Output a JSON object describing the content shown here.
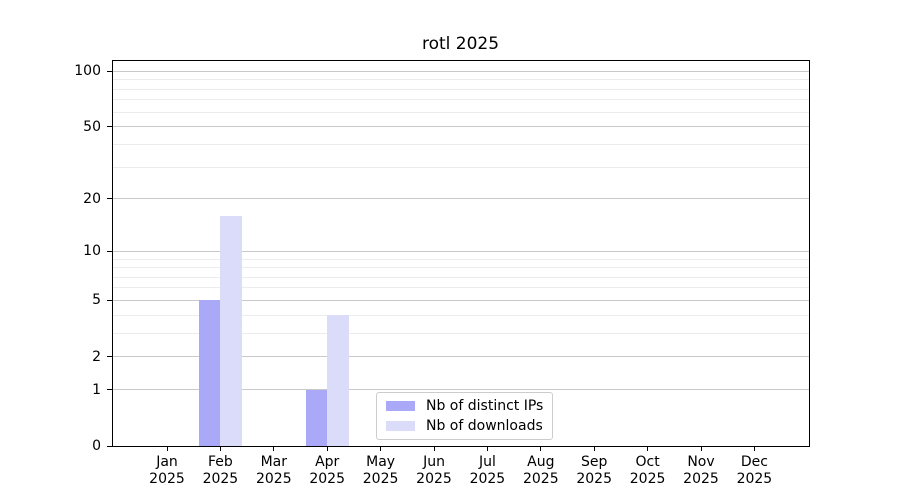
{
  "chart_data": {
    "type": "bar",
    "title": "rotl 2025",
    "categories": [
      "Jan 2025",
      "Feb 2025",
      "Mar 2025",
      "Apr 2025",
      "May 2025",
      "Jun 2025",
      "Jul 2025",
      "Aug 2025",
      "Sep 2025",
      "Oct 2025",
      "Nov 2025",
      "Dec 2025"
    ],
    "series": [
      {
        "name": "Nb of distinct IPs",
        "color": "#a9a9f7",
        "values": [
          0,
          5,
          0,
          1,
          0,
          0,
          0,
          0,
          0,
          0,
          0,
          0
        ]
      },
      {
        "name": "Nb of downloads",
        "color": "#dbdbfa",
        "values": [
          0,
          16,
          0,
          4,
          0,
          0,
          0,
          0,
          0,
          0,
          0,
          0
        ]
      }
    ],
    "yscale": "log1p",
    "yticks": [
      0,
      1,
      2,
      5,
      10,
      20,
      50,
      100
    ],
    "minor_yticks": [
      3,
      4,
      6,
      7,
      8,
      9,
      30,
      40,
      60,
      70,
      80,
      90
    ],
    "ylim": [
      0,
      113
    ],
    "xlabel": "",
    "ylabel": "",
    "grid": "horizontal",
    "legend_position": "lower center",
    "colors": {
      "major_grid": "#c9c9c9",
      "minor_grid": "#ececec",
      "axis": "#000000",
      "background": "#ffffff",
      "legend_border": "#cccccc"
    }
  }
}
